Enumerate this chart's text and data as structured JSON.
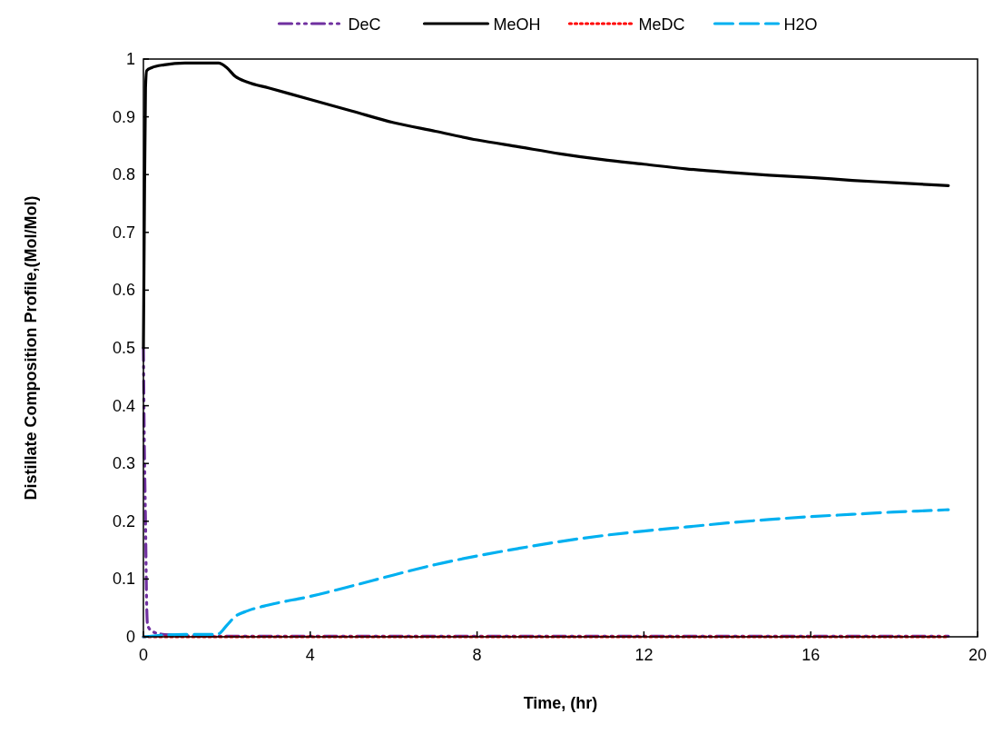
{
  "chart_data": {
    "type": "line",
    "xlabel": "Time, (hr)",
    "ylabel": "Distillate Composition Profile,(Mol/Mol)",
    "xlim": [
      0,
      20
    ],
    "xticks": [
      0,
      4,
      8,
      12,
      16,
      20
    ],
    "ylim": [
      0,
      1
    ],
    "yticks": [
      0,
      0.1,
      0.2,
      0.3,
      0.4,
      0.5,
      0.6,
      0.7,
      0.8,
      0.9,
      1
    ],
    "grid": false,
    "legend": "top",
    "series": [
      {
        "name": "DeC",
        "color": "#7030a0",
        "line_style": "dashdot",
        "x": [
          0,
          0.02,
          0.05,
          0.08,
          0.1,
          0.2,
          0.4,
          0.7,
          1,
          2,
          19.3
        ],
        "values": [
          0.5,
          0.35,
          0.2,
          0.05,
          0.02,
          0.01,
          0.005,
          0.003,
          0.002,
          0.001,
          0.001
        ]
      },
      {
        "name": "MeOH",
        "color": "#000000",
        "line_style": "solid",
        "x": [
          0,
          0.02,
          0.05,
          0.08,
          0.2,
          0.5,
          1,
          1.5,
          1.8,
          2,
          2.2,
          2.5,
          3,
          4,
          5,
          6,
          7,
          8,
          9,
          10,
          11,
          12,
          13,
          14,
          15,
          16,
          17,
          18,
          19,
          19.3
        ],
        "values": [
          0.5,
          0.7,
          0.95,
          0.98,
          0.985,
          0.99,
          0.993,
          0.993,
          0.993,
          0.985,
          0.97,
          0.96,
          0.95,
          0.93,
          0.91,
          0.89,
          0.875,
          0.86,
          0.848,
          0.836,
          0.826,
          0.818,
          0.81,
          0.804,
          0.799,
          0.795,
          0.79,
          0.786,
          0.782,
          0.781
        ]
      },
      {
        "name": "MeDC",
        "color": "#ff0000",
        "line_style": "dotted",
        "x": [
          0,
          19.3
        ],
        "values": [
          0,
          0
        ]
      },
      {
        "name": "H2O",
        "color": "#00b0f0",
        "line_style": "dashed",
        "x": [
          0,
          0.5,
          1,
          1.7,
          1.8,
          2,
          2.2,
          2.5,
          3,
          4,
          5,
          6,
          7,
          8,
          9,
          10,
          11,
          12,
          13,
          14,
          15,
          16,
          17,
          18,
          19,
          19.3
        ],
        "values": [
          0,
          0.003,
          0.004,
          0.004,
          0.005,
          0.02,
          0.035,
          0.045,
          0.055,
          0.07,
          0.088,
          0.107,
          0.125,
          0.14,
          0.153,
          0.165,
          0.175,
          0.183,
          0.19,
          0.197,
          0.203,
          0.208,
          0.212,
          0.216,
          0.219,
          0.22
        ]
      }
    ]
  }
}
